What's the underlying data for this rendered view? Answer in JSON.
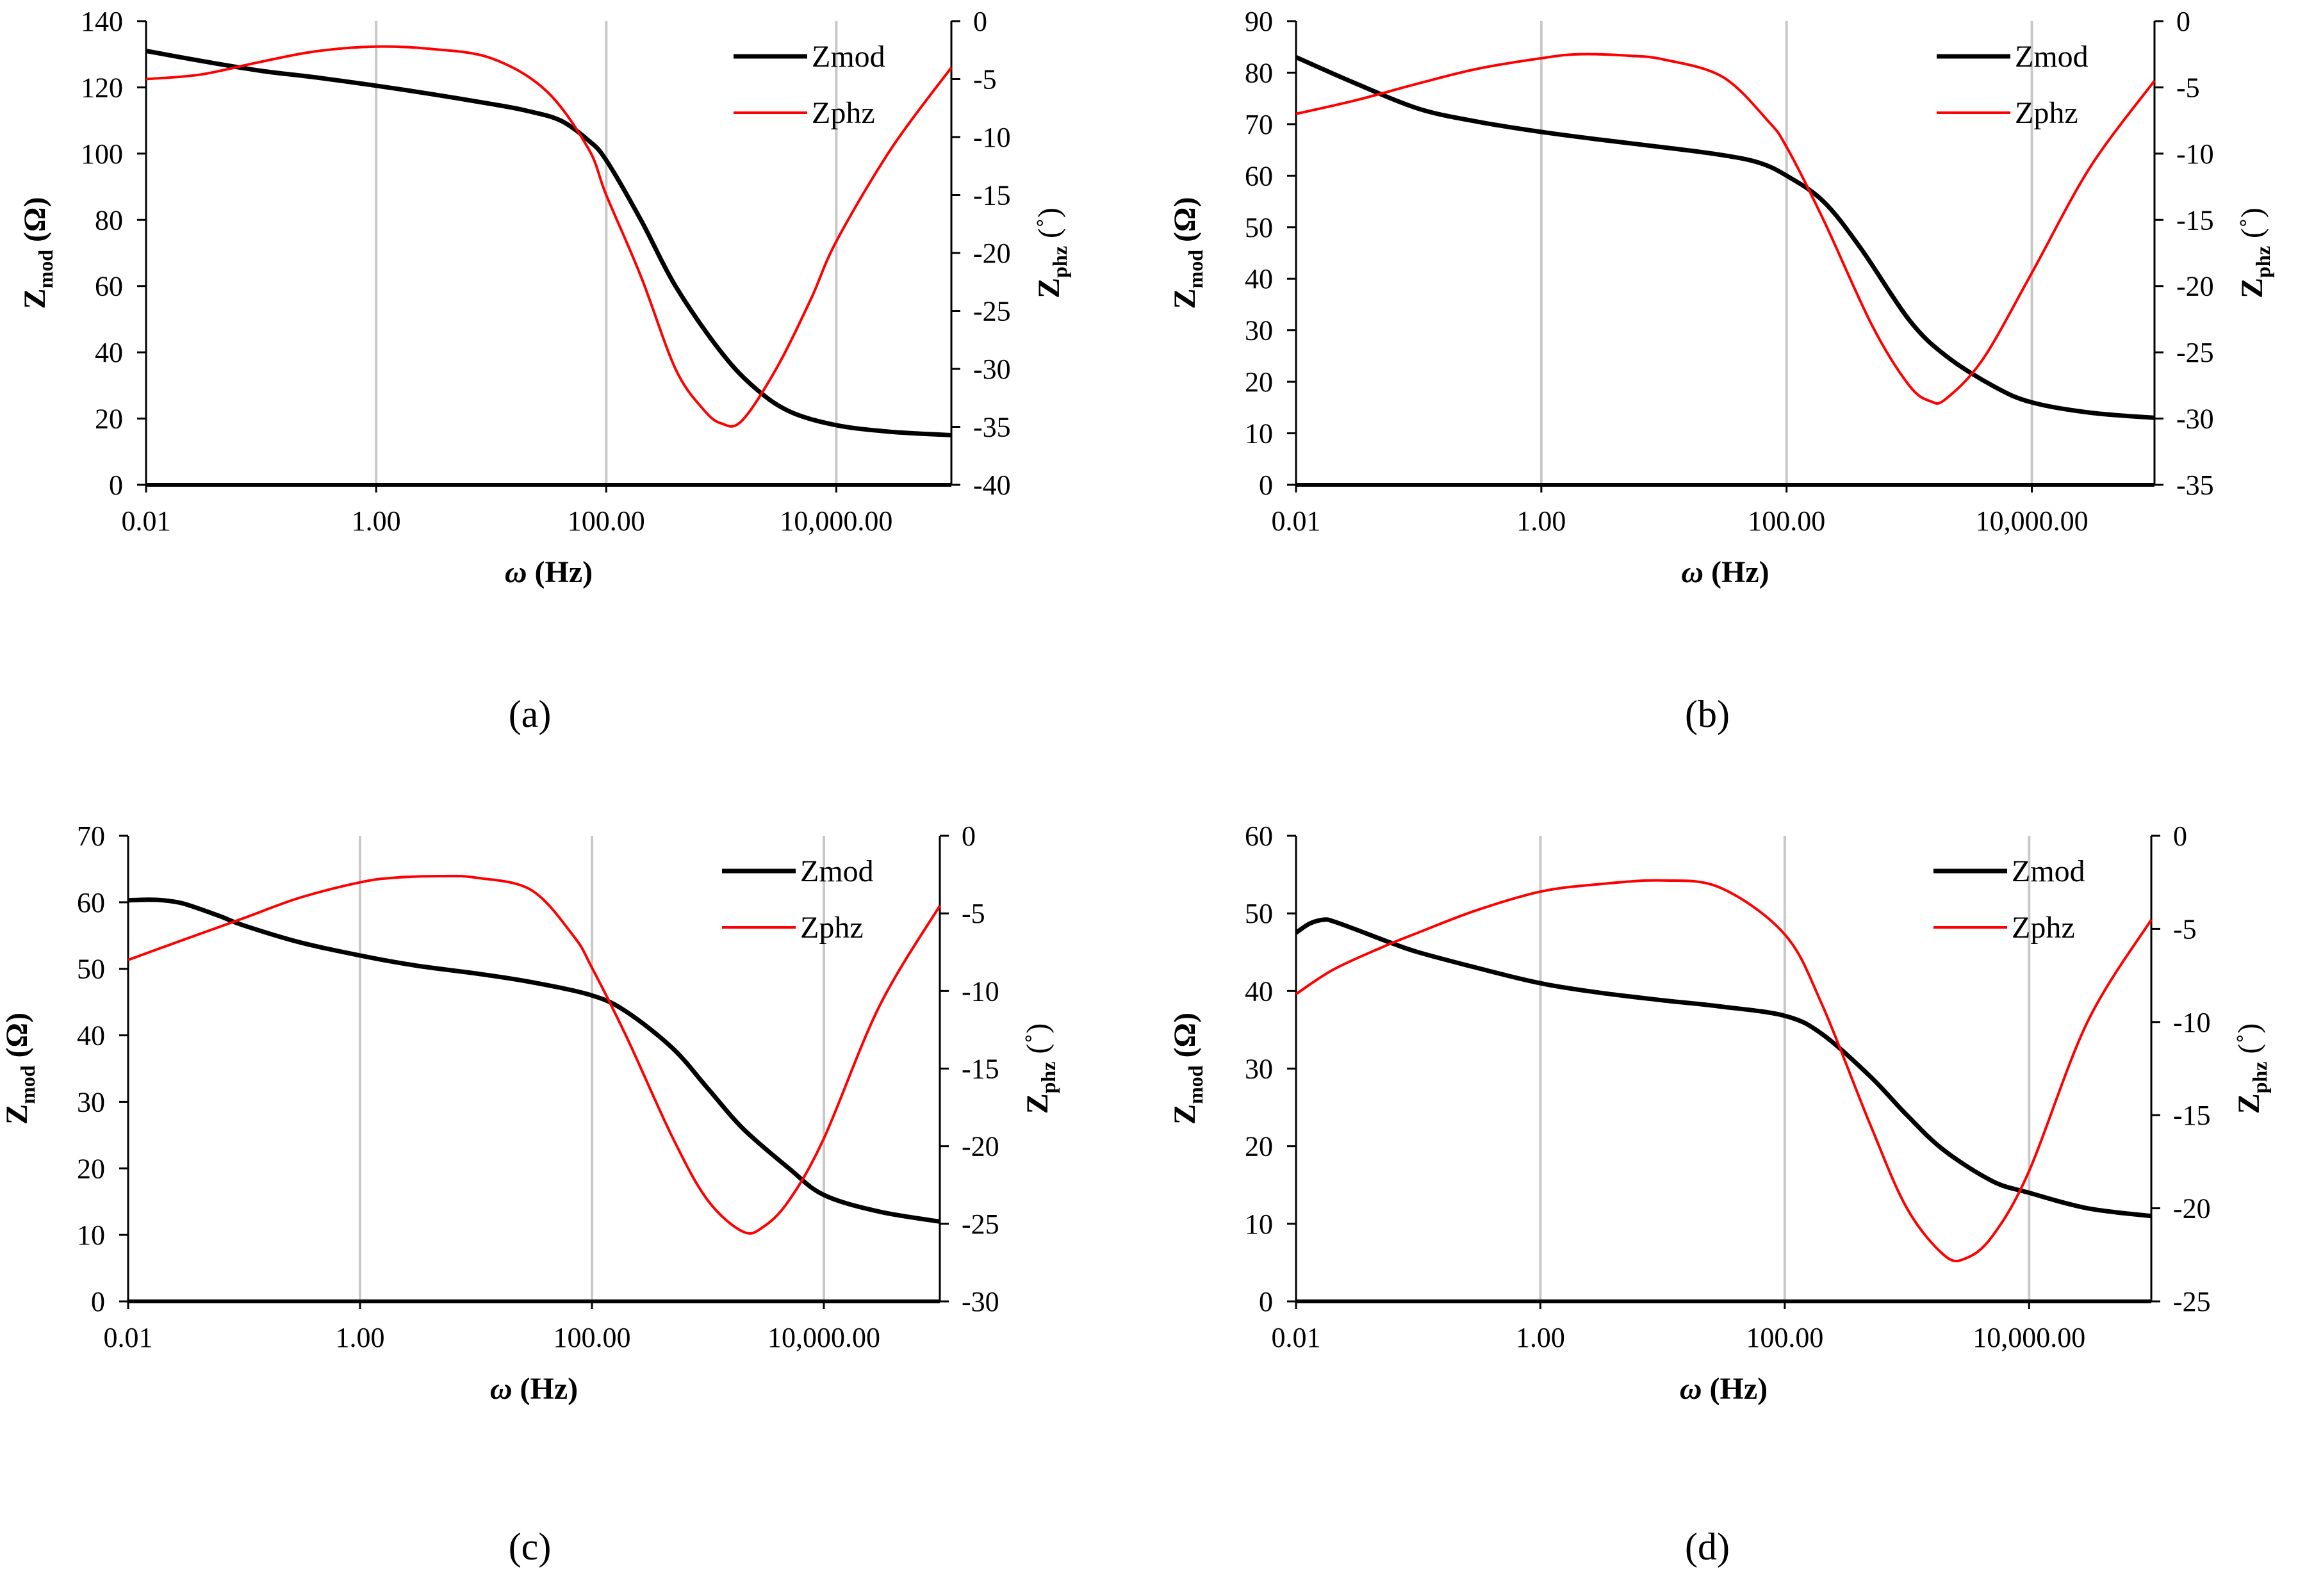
{
  "chart_data": [
    {
      "panel_label": "(a)",
      "type": "line",
      "xlabel_symbol": "ω",
      "xlabel_unit": "(Hz)",
      "ylabel_left_main": "Z",
      "ylabel_left_sub": "mod",
      "ylabel_left_unit": "(Ω)",
      "ylabel_right_main": "Z",
      "ylabel_right_sub": "phz",
      "ylabel_right_unit": "(˚)",
      "x_scale": "log",
      "xlim": [
        0.01,
        100000
      ],
      "x_ticks": [
        0.01,
        1,
        100,
        10000
      ],
      "x_tick_labels": [
        "0.01",
        "1.00",
        "100.00",
        "10,000.00"
      ],
      "ylim_left": [
        0,
        140
      ],
      "y_ticks_left": [
        0,
        20,
        40,
        60,
        80,
        100,
        120,
        140
      ],
      "y_tick_labels_left": [
        "0",
        "20",
        "40",
        "60",
        "80",
        "100",
        "120",
        "140"
      ],
      "ylim_right": [
        -40,
        0
      ],
      "y_ticks_right": [
        -40,
        -35,
        -30,
        -25,
        -20,
        -15,
        -10,
        -5,
        0
      ],
      "y_tick_labels_right": [
        "-40",
        "-35",
        "-30",
        "-25",
        "-20",
        "-15",
        "-10",
        "-5",
        "0"
      ],
      "legend_position": "top-right",
      "series": [
        {
          "name": "Zmod",
          "axis": "left",
          "color": "#000000",
          "x": [
            0.01,
            0.03,
            0.1,
            0.3,
            1,
            3,
            10,
            20,
            40,
            70,
            100,
            200,
            400,
            1000,
            2000,
            4000,
            10000,
            30000,
            100000
          ],
          "y": [
            131,
            128,
            125,
            123,
            120.5,
            118,
            115,
            113,
            110,
            104,
            98,
            80,
            60,
            40,
            29,
            22,
            18,
            16,
            15
          ]
        },
        {
          "name": "Zphz",
          "axis": "right",
          "color": "#ff0000",
          "x": [
            0.01,
            0.03,
            0.1,
            0.3,
            1,
            3,
            10,
            30,
            70,
            100,
            200,
            400,
            700,
            1000,
            1500,
            3000,
            6000,
            10000,
            30000,
            100000
          ],
          "y": [
            -5,
            -4.6,
            -3.5,
            -2.6,
            -2.2,
            -2.4,
            -3.2,
            -6,
            -11,
            -15,
            -22,
            -30,
            -33.5,
            -34.7,
            -34.5,
            -30,
            -24,
            -19,
            -11,
            -4
          ]
        }
      ]
    },
    {
      "panel_label": "(b)",
      "type": "line",
      "xlabel_symbol": "ω",
      "xlabel_unit": "(Hz)",
      "ylabel_left_main": "Z",
      "ylabel_left_sub": "mod",
      "ylabel_left_unit": "(Ω)",
      "ylabel_right_main": "Z",
      "ylabel_right_sub": "phz",
      "ylabel_right_unit": "(˚)",
      "x_scale": "log",
      "xlim": [
        0.01,
        100000
      ],
      "x_ticks": [
        0.01,
        1,
        100,
        10000
      ],
      "x_tick_labels": [
        "0.01",
        "1.00",
        "100.00",
        "10,000.00"
      ],
      "ylim_left": [
        0,
        90
      ],
      "y_ticks_left": [
        0,
        10,
        20,
        30,
        40,
        50,
        60,
        70,
        80,
        90
      ],
      "y_tick_labels_left": [
        "0",
        "10",
        "20",
        "30",
        "40",
        "50",
        "60",
        "70",
        "80",
        "90"
      ],
      "ylim_right": [
        -35,
        0
      ],
      "y_ticks_right": [
        -35,
        -30,
        -25,
        -20,
        -15,
        -10,
        -5,
        0
      ],
      "y_tick_labels_right": [
        "-35",
        "-30",
        "-25",
        "-20",
        "-15",
        "-10",
        "-5",
        "0"
      ],
      "legend_position": "top-right",
      "series": [
        {
          "name": "Zmod",
          "axis": "left",
          "color": "#000000",
          "x": [
            0.01,
            0.03,
            0.1,
            0.3,
            1,
            3,
            10,
            30,
            60,
            100,
            200,
            400,
            1000,
            2000,
            5000,
            10000,
            30000,
            100000
          ],
          "y": [
            83,
            78,
            73,
            70.5,
            68.5,
            67,
            65.5,
            64,
            62.5,
            60,
            55,
            46,
            32,
            25,
            19,
            16,
            14,
            13
          ]
        },
        {
          "name": "Zphz",
          "axis": "right",
          "color": "#ff0000",
          "x": [
            0.01,
            0.03,
            0.1,
            0.3,
            1,
            2,
            5,
            10,
            30,
            70,
            100,
            200,
            500,
            1000,
            1500,
            2000,
            4000,
            10000,
            30000,
            100000
          ],
          "y": [
            -7,
            -6,
            -4.7,
            -3.6,
            -2.8,
            -2.5,
            -2.6,
            -2.9,
            -4.2,
            -7.5,
            -9.5,
            -15,
            -23,
            -27.5,
            -28.7,
            -28.5,
            -25.5,
            -19,
            -11,
            -4.5
          ]
        }
      ]
    },
    {
      "panel_label": "(c)",
      "type": "line",
      "xlabel_symbol": "ω",
      "xlabel_unit": "(Hz)",
      "ylabel_left_main": "Z",
      "ylabel_left_sub": "mod",
      "ylabel_left_unit": "(Ω)",
      "ylabel_right_main": "Z",
      "ylabel_right_sub": "phz",
      "ylabel_right_unit": "(˚)",
      "x_scale": "log",
      "xlim": [
        0.01,
        100000
      ],
      "x_ticks": [
        0.01,
        1,
        100,
        10000
      ],
      "x_tick_labels": [
        "0.01",
        "1.00",
        "100.00",
        "10,000.00"
      ],
      "ylim_left": [
        0,
        70
      ],
      "y_ticks_left": [
        0,
        10,
        20,
        30,
        40,
        50,
        60,
        70
      ],
      "y_tick_labels_left": [
        "0",
        "10",
        "20",
        "30",
        "40",
        "50",
        "60",
        "70"
      ],
      "ylim_right": [
        -30,
        0
      ],
      "y_ticks_right": [
        -30,
        -25,
        -20,
        -15,
        -10,
        -5,
        0
      ],
      "y_tick_labels_right": [
        "-30",
        "-25",
        "-20",
        "-15",
        "-10",
        "-5",
        "0"
      ],
      "legend_position": "top-right",
      "series": [
        {
          "name": "Zmod",
          "axis": "left",
          "color": "#000000",
          "x": [
            0.01,
            0.015,
            0.02,
            0.03,
            0.06,
            0.1,
            0.3,
            1,
            3,
            10,
            30,
            100,
            200,
            500,
            1000,
            2000,
            5000,
            10000,
            30000,
            100000
          ],
          "y": [
            60.3,
            60.4,
            60.3,
            59.8,
            58,
            56.5,
            54,
            52,
            50.5,
            49.3,
            48,
            46,
            43.5,
            38,
            32,
            26,
            20,
            16,
            13.5,
            12
          ]
        },
        {
          "name": "Zphz",
          "axis": "right",
          "color": "#ff0000",
          "x": [
            0.01,
            0.03,
            0.1,
            0.3,
            1,
            2,
            5,
            10,
            30,
            70,
            100,
            200,
            500,
            1000,
            2000,
            3000,
            5000,
            10000,
            30000,
            100000
          ],
          "y": [
            -8,
            -6.7,
            -5.3,
            -4,
            -3,
            -2.7,
            -2.6,
            -2.7,
            -3.5,
            -6.5,
            -8.5,
            -13,
            -19.5,
            -23.5,
            -25.5,
            -25.2,
            -23.5,
            -19.5,
            -11,
            -4.5
          ]
        }
      ]
    },
    {
      "panel_label": "(d)",
      "type": "line",
      "xlabel_symbol": "ω",
      "xlabel_unit": "(Hz)",
      "ylabel_left_main": "Z",
      "ylabel_left_sub": "mod",
      "ylabel_left_unit": "(Ω)",
      "ylabel_right_main": "Z",
      "ylabel_right_sub": "phz",
      "ylabel_right_unit": "(˚)",
      "x_scale": "log",
      "xlim": [
        0.01,
        100000
      ],
      "x_ticks": [
        0.01,
        1,
        100,
        10000
      ],
      "x_tick_labels": [
        "0.01",
        "1.00",
        "100.00",
        "10,000.00"
      ],
      "ylim_left": [
        0,
        60
      ],
      "y_ticks_left": [
        0,
        10,
        20,
        30,
        40,
        50,
        60
      ],
      "y_tick_labels_left": [
        "0",
        "10",
        "20",
        "30",
        "40",
        "50",
        "60"
      ],
      "ylim_right": [
        -25,
        0
      ],
      "y_ticks_right": [
        -25,
        -20,
        -15,
        -10,
        -5,
        0
      ],
      "y_tick_labels_right": [
        "-25",
        "-20",
        "-15",
        "-10",
        "-5",
        "0"
      ],
      "legend_position": "top-right",
      "series": [
        {
          "name": "Zmod",
          "axis": "left",
          "color": "#000000",
          "x": [
            0.01,
            0.013,
            0.017,
            0.02,
            0.03,
            0.06,
            0.1,
            0.3,
            1,
            3,
            10,
            30,
            100,
            200,
            500,
            1000,
            2000,
            5000,
            10000,
            30000,
            100000
          ],
          "y": [
            47.5,
            48.7,
            49.2,
            49,
            48,
            46.2,
            45,
            43,
            41,
            39.8,
            38.8,
            38,
            36.8,
            34.5,
            29,
            24,
            19.5,
            15.5,
            14,
            12,
            11
          ]
        },
        {
          "name": "Zphz",
          "axis": "right",
          "color": "#ff0000",
          "x": [
            0.01,
            0.02,
            0.05,
            0.1,
            0.3,
            1,
            3,
            10,
            30,
            100,
            200,
            500,
            1000,
            2000,
            3000,
            5000,
            10000,
            30000,
            100000
          ],
          "y": [
            -8.5,
            -7.2,
            -6,
            -5.2,
            -4,
            -3,
            -2.6,
            -2.4,
            -2.8,
            -5.3,
            -9,
            -15.5,
            -20,
            -22.5,
            -22.7,
            -21.5,
            -18,
            -10,
            -4.5
          ]
        }
      ]
    }
  ]
}
